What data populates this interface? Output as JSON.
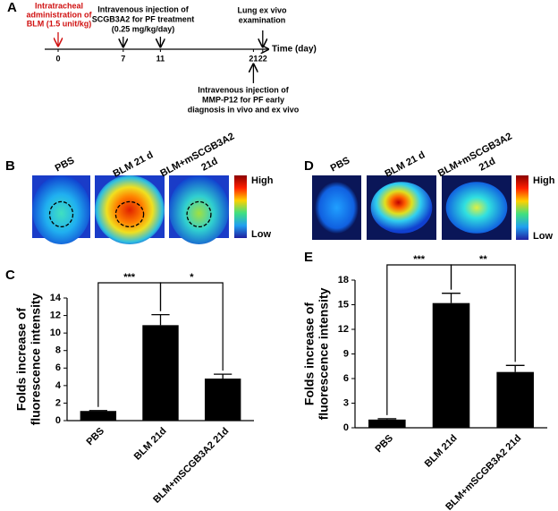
{
  "timeline": {
    "panel": "A",
    "days": [
      0,
      7,
      11,
      21,
      22
    ],
    "axis_label": "Time (day)",
    "start_note": [
      "Intratracheal",
      "administration of",
      "BLM (1.5 unit/kg)"
    ],
    "treatment_note": [
      "Intravenous injection of",
      "SCGB3A2 for PF treatment",
      "(0.25 mg/kg/day)"
    ],
    "exam_note": [
      "Lung ex vivo",
      "examination"
    ],
    "diagnosis_note": [
      "Intravenous injection of",
      "MMP-P12 for PF early",
      "diagnosis in vivo and ex vivo"
    ]
  },
  "imaging": [
    {
      "panel": "B",
      "labels": [
        [
          "PBS"
        ],
        [
          "BLM 21 d"
        ],
        [
          "BLM+mSCGB3A2",
          "21d"
        ]
      ],
      "scale": [
        "High",
        "Low"
      ]
    },
    {
      "panel": "D",
      "labels": [
        [
          "PBS"
        ],
        [
          "BLM 21 d"
        ],
        [
          "BLM+mSCGB3A2",
          "21d"
        ]
      ],
      "scale": [
        "High",
        "Low"
      ]
    }
  ],
  "chart_data": [
    {
      "type": "bar",
      "panel": "C",
      "ylabel": [
        "Folds increase of",
        "fluorescence intensity"
      ],
      "categories": [
        "PBS",
        "BLM 21d",
        "BLM+mSCGB3A2 21d"
      ],
      "values": [
        1.1,
        10.9,
        4.8
      ],
      "errors": [
        0.05,
        1.2,
        0.5
      ],
      "color": "#000000",
      "ylim": [
        0,
        14
      ],
      "yticks": [
        0,
        2,
        4,
        6,
        8,
        10,
        12,
        14
      ],
      "significance": [
        "***",
        "*"
      ]
    },
    {
      "type": "bar",
      "panel": "E",
      "ylabel": [
        "Folds increase of",
        "fluorescence intensity"
      ],
      "categories": [
        "PBS",
        "BLM 21d",
        "BLM+mSCGB3A2 21d"
      ],
      "values": [
        1.0,
        15.2,
        6.8
      ],
      "errors": [
        0.1,
        1.2,
        0.8
      ],
      "color": "#000000",
      "ylim": [
        0,
        18
      ],
      "yticks": [
        0,
        3,
        6,
        9,
        12,
        15,
        18
      ],
      "significance": [
        "***",
        "**"
      ]
    }
  ]
}
